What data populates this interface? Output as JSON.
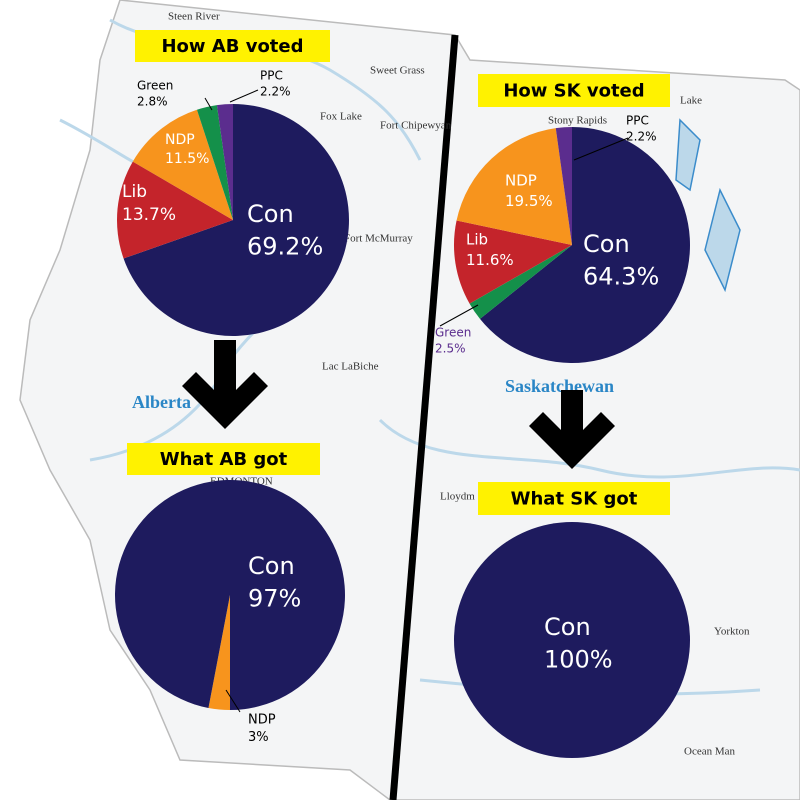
{
  "chart_data": [
    {
      "type": "pie",
      "title": "How AB voted",
      "categories": [
        "Con",
        "Lib",
        "NDP",
        "Green",
        "PPC"
      ],
      "values": [
        69.2,
        13.7,
        11.5,
        2.8,
        2.2
      ],
      "value_labels": [
        "69.2%",
        "13.7%",
        "11.5%",
        "2.8%",
        "2.2%"
      ],
      "colors": [
        "#1e1b5e",
        "#c4242b",
        "#f7941d",
        "#14904a",
        "#5b2d8e"
      ]
    },
    {
      "type": "pie",
      "title": "How SK voted",
      "categories": [
        "Con",
        "Green",
        "Lib",
        "NDP",
        "PPC"
      ],
      "values": [
        64.3,
        2.5,
        11.6,
        19.5,
        2.2
      ],
      "value_labels": [
        "64.3%",
        "2.5%",
        "11.6%",
        "19.5%",
        "2.2%"
      ],
      "colors": [
        "#1e1b5e",
        "#14904a",
        "#c4242b",
        "#f7941d",
        "#5b2d8e"
      ]
    },
    {
      "type": "pie",
      "title": "What AB got",
      "categories": [
        "NDP",
        "Con"
      ],
      "values": [
        3,
        97
      ],
      "value_labels": [
        "3%",
        "97%"
      ],
      "colors": [
        "#f7941d",
        "#1e1b5e"
      ]
    },
    {
      "type": "pie",
      "title": "What SK got",
      "categories": [
        "Con"
      ],
      "values": [
        100
      ],
      "value_labels": [
        "100%"
      ],
      "colors": [
        "#1e1b5e"
      ]
    }
  ],
  "map": {
    "labels": [
      "Steen River",
      "Sweet Grass",
      "Fort Chipewyan",
      "Fox Lake",
      "Fort McMurray",
      "Lac LaBiche",
      "Alberta",
      "Saskatchewan",
      "EDMONTON",
      "Lloydm",
      "Yorkton",
      "Ocean Man",
      "Stony Rapids",
      "Lake"
    ]
  }
}
